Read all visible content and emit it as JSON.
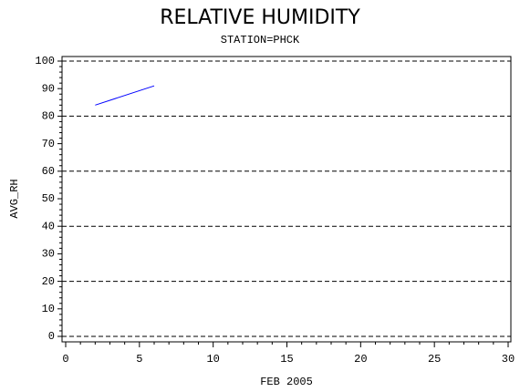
{
  "chart_data": {
    "type": "line",
    "title": "RELATIVE HUMIDITY",
    "subtitle": "STATION=PHCK",
    "x_label": "FEB 2005",
    "y_label": "AVG_RH",
    "x": [
      2,
      6
    ],
    "series": [
      {
        "name": "AVG_RH",
        "color": "#0000ff",
        "values": [
          84,
          91
        ]
      }
    ],
    "xlim": [
      0,
      30
    ],
    "xticks": [
      0,
      5,
      10,
      15,
      20,
      25,
      30
    ],
    "ylim": [
      0,
      100
    ],
    "yticks": [
      0,
      10,
      20,
      30,
      40,
      50,
      60,
      70,
      80,
      90,
      100
    ],
    "grid": true
  }
}
